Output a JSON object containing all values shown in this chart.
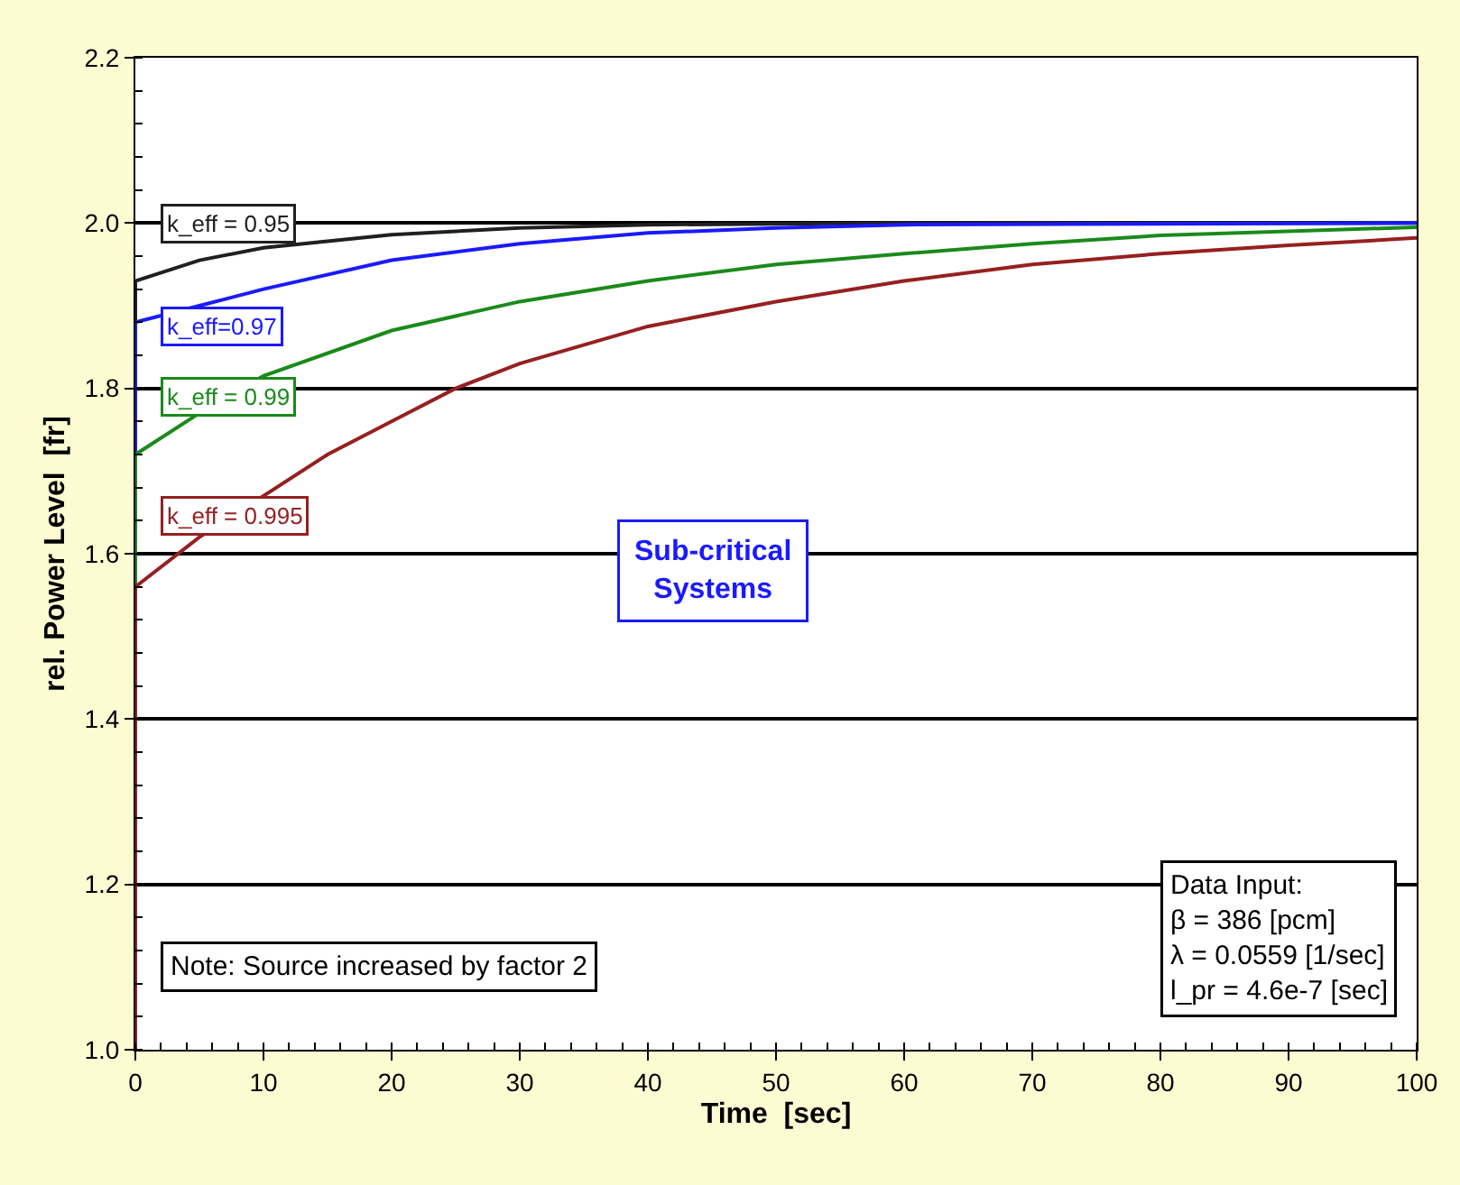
{
  "chart_data": {
    "type": "line",
    "xlabel": "Time  [sec]",
    "ylabel": "rel. Power Level  [fr]",
    "xlim": [
      0,
      100
    ],
    "xticks": [
      0,
      10,
      20,
      30,
      40,
      50,
      60,
      70,
      80,
      90,
      100
    ],
    "ylim": [
      1.0,
      2.2
    ],
    "yticks": [
      {
        "value": 1,
        "label": "1.0"
      },
      1.2,
      1.4,
      1.6,
      1.8,
      {
        "value": 2,
        "label": "2.0"
      },
      2.2
    ],
    "grid": "y",
    "legend": false,
    "marker": "none",
    "line_style": "solid",
    "series": [
      {
        "name": "k_eff = 0.95",
        "color": "#202020",
        "x": [
          0,
          0,
          5,
          10,
          20,
          30,
          40,
          50,
          60,
          100
        ],
        "values": [
          1.0,
          1.93,
          1.955,
          1.97,
          1.986,
          1.994,
          1.998,
          1.999,
          2.0,
          2.0
        ]
      },
      {
        "name": "k_eff=0.97",
        "color": "#1a1aff",
        "x": [
          0,
          0,
          5,
          10,
          20,
          30,
          40,
          50,
          60,
          100
        ],
        "values": [
          1.0,
          1.88,
          1.9,
          1.92,
          1.955,
          1.975,
          1.988,
          1.994,
          1.998,
          2.0
        ]
      },
      {
        "name": "k_eff = 0.99",
        "color": "#1a8a1a",
        "x": [
          0,
          0,
          5,
          10,
          20,
          30,
          40,
          50,
          60,
          70,
          80,
          100
        ],
        "values": [
          1.0,
          1.72,
          1.77,
          1.815,
          1.87,
          1.905,
          1.93,
          1.95,
          1.963,
          1.975,
          1.985,
          1.995
        ]
      },
      {
        "name": "k_eff = 0.995",
        "color": "#962020",
        "x": [
          0,
          0,
          5,
          10,
          15,
          20,
          25,
          30,
          40,
          50,
          60,
          70,
          80,
          90,
          100
        ],
        "values": [
          1.0,
          1.56,
          1.62,
          1.67,
          1.72,
          1.76,
          1.8,
          1.83,
          1.875,
          1.905,
          1.93,
          1.95,
          1.963,
          1.973,
          1.982
        ]
      }
    ],
    "annotations": [
      "Sub-critical\nSystems",
      "Data Input:\nβ = 386 [pcm]\nλ = 0.0559 [1/sec]\nl_pr = 4.6e-7 [sec]",
      "Note: Source increased by factor 2"
    ]
  }
}
